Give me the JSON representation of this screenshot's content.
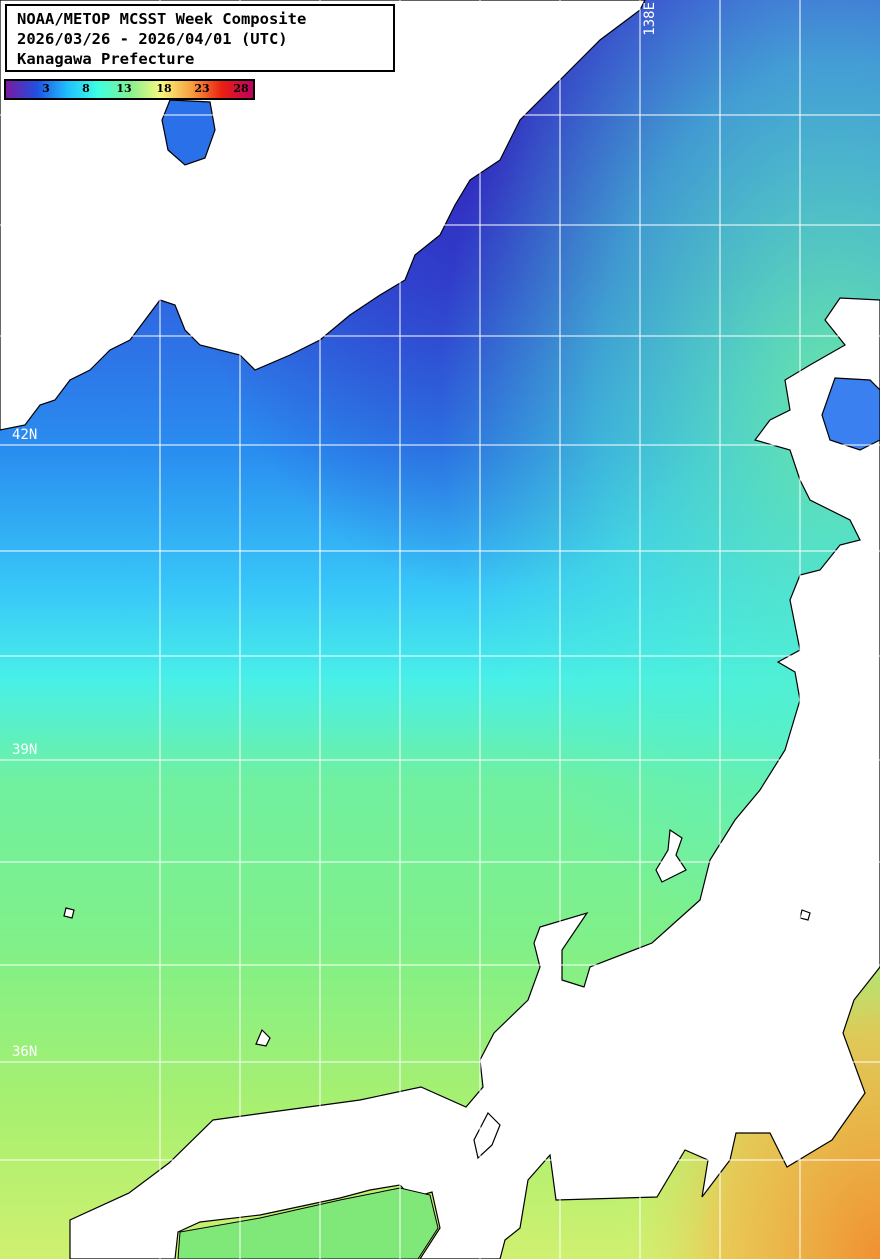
{
  "title": {
    "lines": [
      "NOAA/METOP MCSST Week Composite",
      "2026/03/26 - 2026/04/01 (UTC)",
      "Kanagawa Prefecture"
    ]
  },
  "colorbar": {
    "unit_hint": "sea surface temperature",
    "ticks": [
      "3",
      "8",
      "13",
      "18",
      "23",
      "28"
    ],
    "colors": [
      "#7a1aa0",
      "#2050e0",
      "#20c0ff",
      "#40ffe0",
      "#80f090",
      "#f8f880",
      "#f8a040",
      "#e82010",
      "#c00060"
    ]
  },
  "grid": {
    "lat_labels": [
      "42N",
      "39N",
      "36N"
    ],
    "lon_labels": [
      "138E"
    ]
  },
  "colors": {
    "land": "#ffffff",
    "coastline": "#000000",
    "gridline": "#ffffff"
  }
}
